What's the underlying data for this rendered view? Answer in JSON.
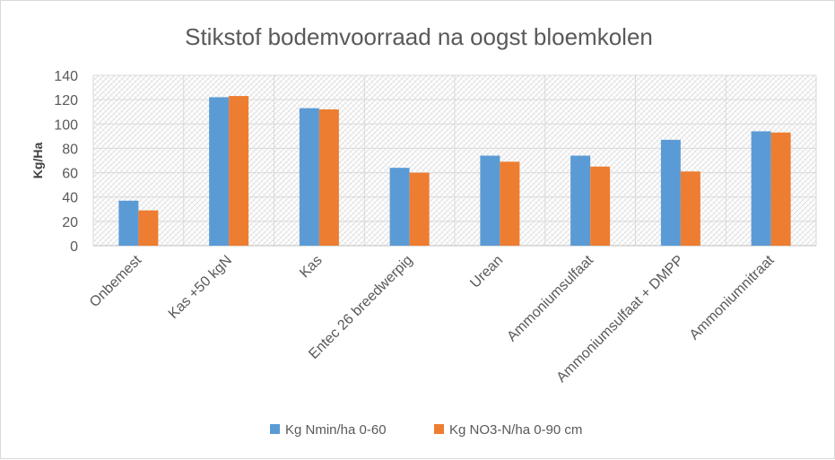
{
  "chart_data": {
    "type": "bar",
    "title": "Stikstof bodemvoorraad na oogst bloemkolen",
    "xlabel": "",
    "ylabel": "Kg/Ha",
    "ylim": [
      0,
      140
    ],
    "yticks": [
      0,
      20,
      40,
      60,
      80,
      100,
      120,
      140
    ],
    "categories": [
      "Onbemest",
      "Kas +50 kgN",
      "Kas",
      "Entec 26 breedwerpig",
      "Urean",
      "Ammoniumsulfaat",
      "Ammoniumsulfaat + DMPP",
      "Ammoniumnitraat"
    ],
    "series": [
      {
        "name": "Kg Nmin/ha 0-60",
        "color": "#5b9bd5",
        "values": [
          37,
          122,
          113,
          64,
          74,
          74,
          87,
          94
        ]
      },
      {
        "name": "Kg NO3-N/ha 0-90 cm",
        "color": "#ed7d31",
        "values": [
          29,
          123,
          112,
          60,
          69,
          65,
          61,
          93
        ]
      }
    ],
    "grid": true,
    "legend_position": "bottom"
  }
}
